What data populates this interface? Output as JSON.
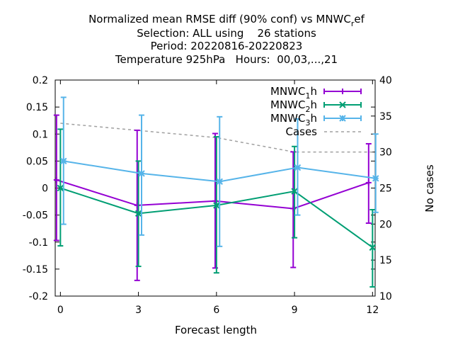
{
  "chart_data": {
    "type": "line",
    "title_lines": [
      "Normalized mean RMSE diff (90% conf) vs MNWC_ref",
      "Selection: ALL using    26 stations",
      "Period: 20220816-20220823",
      "Temperature 925hPa   Hours:  00,03,...,21"
    ],
    "xlabel": "Forecast length",
    "ylabel_right": "No cases",
    "x": [
      0,
      3,
      6,
      9,
      12
    ],
    "xlim": [
      -0.2,
      12.1
    ],
    "ylim": [
      -0.2,
      0.2
    ],
    "y2lim": [
      10,
      40
    ],
    "x_ticks": [
      "0",
      "3",
      "6",
      "9",
      "12"
    ],
    "y_ticks": [
      "0.2",
      "0.15",
      "0.1",
      "0.05",
      "0",
      "-0.05",
      "-0.1",
      "-0.15",
      "-0.2"
    ],
    "y2_ticks": [
      "40",
      "35",
      "30",
      "25",
      "20",
      "15",
      "10"
    ],
    "series": [
      {
        "name": "MNWC_1h",
        "legend_main": "MNWC",
        "legend_sub": "1",
        "legend_tail": "h",
        "color": "#9400d3",
        "marker": "plus",
        "x": [
          -0.15,
          2.95,
          5.95,
          8.95,
          11.85
        ],
        "values": [
          0.015,
          -0.032,
          -0.024,
          -0.038,
          0.01
        ],
        "err_low": [
          -0.097,
          -0.171,
          -0.148,
          -0.147,
          -0.065
        ],
        "err_high": [
          0.135,
          0.107,
          0.101,
          0.067,
          0.082
        ]
      },
      {
        "name": "MNWC_2h",
        "legend_main": "MNWC",
        "legend_sub": "2",
        "legend_tail": "h",
        "color": "#009e73",
        "marker": "cross",
        "x": [
          0.0,
          3.0,
          6.0,
          9.0,
          12.0
        ],
        "values": [
          0.0,
          -0.047,
          -0.032,
          -0.006,
          -0.11
        ],
        "err_low": [
          -0.107,
          -0.145,
          -0.157,
          -0.092,
          -0.183
        ],
        "err_high": [
          0.109,
          0.05,
          0.095,
          0.077,
          -0.04
        ]
      },
      {
        "name": "MNWC_3h",
        "legend_main": "MNWC",
        "legend_sub": "3",
        "legend_tail": "h",
        "color": "#56b4e9",
        "marker": "star",
        "x": [
          0.12,
          3.12,
          6.12,
          9.12,
          12.12
        ],
        "values": [
          0.05,
          0.027,
          0.012,
          0.038,
          0.018
        ],
        "err_low": [
          -0.067,
          -0.087,
          -0.108,
          -0.05,
          -0.045
        ],
        "err_high": [
          0.168,
          0.135,
          0.132,
          0.128,
          0.1
        ]
      }
    ],
    "cases": {
      "name": "Cases",
      "color": "#a0a0a0",
      "x": [
        0,
        3,
        6,
        9,
        12
      ],
      "values": [
        34,
        33,
        32,
        30,
        30
      ]
    },
    "legend_position": "top-right",
    "grid": false
  }
}
